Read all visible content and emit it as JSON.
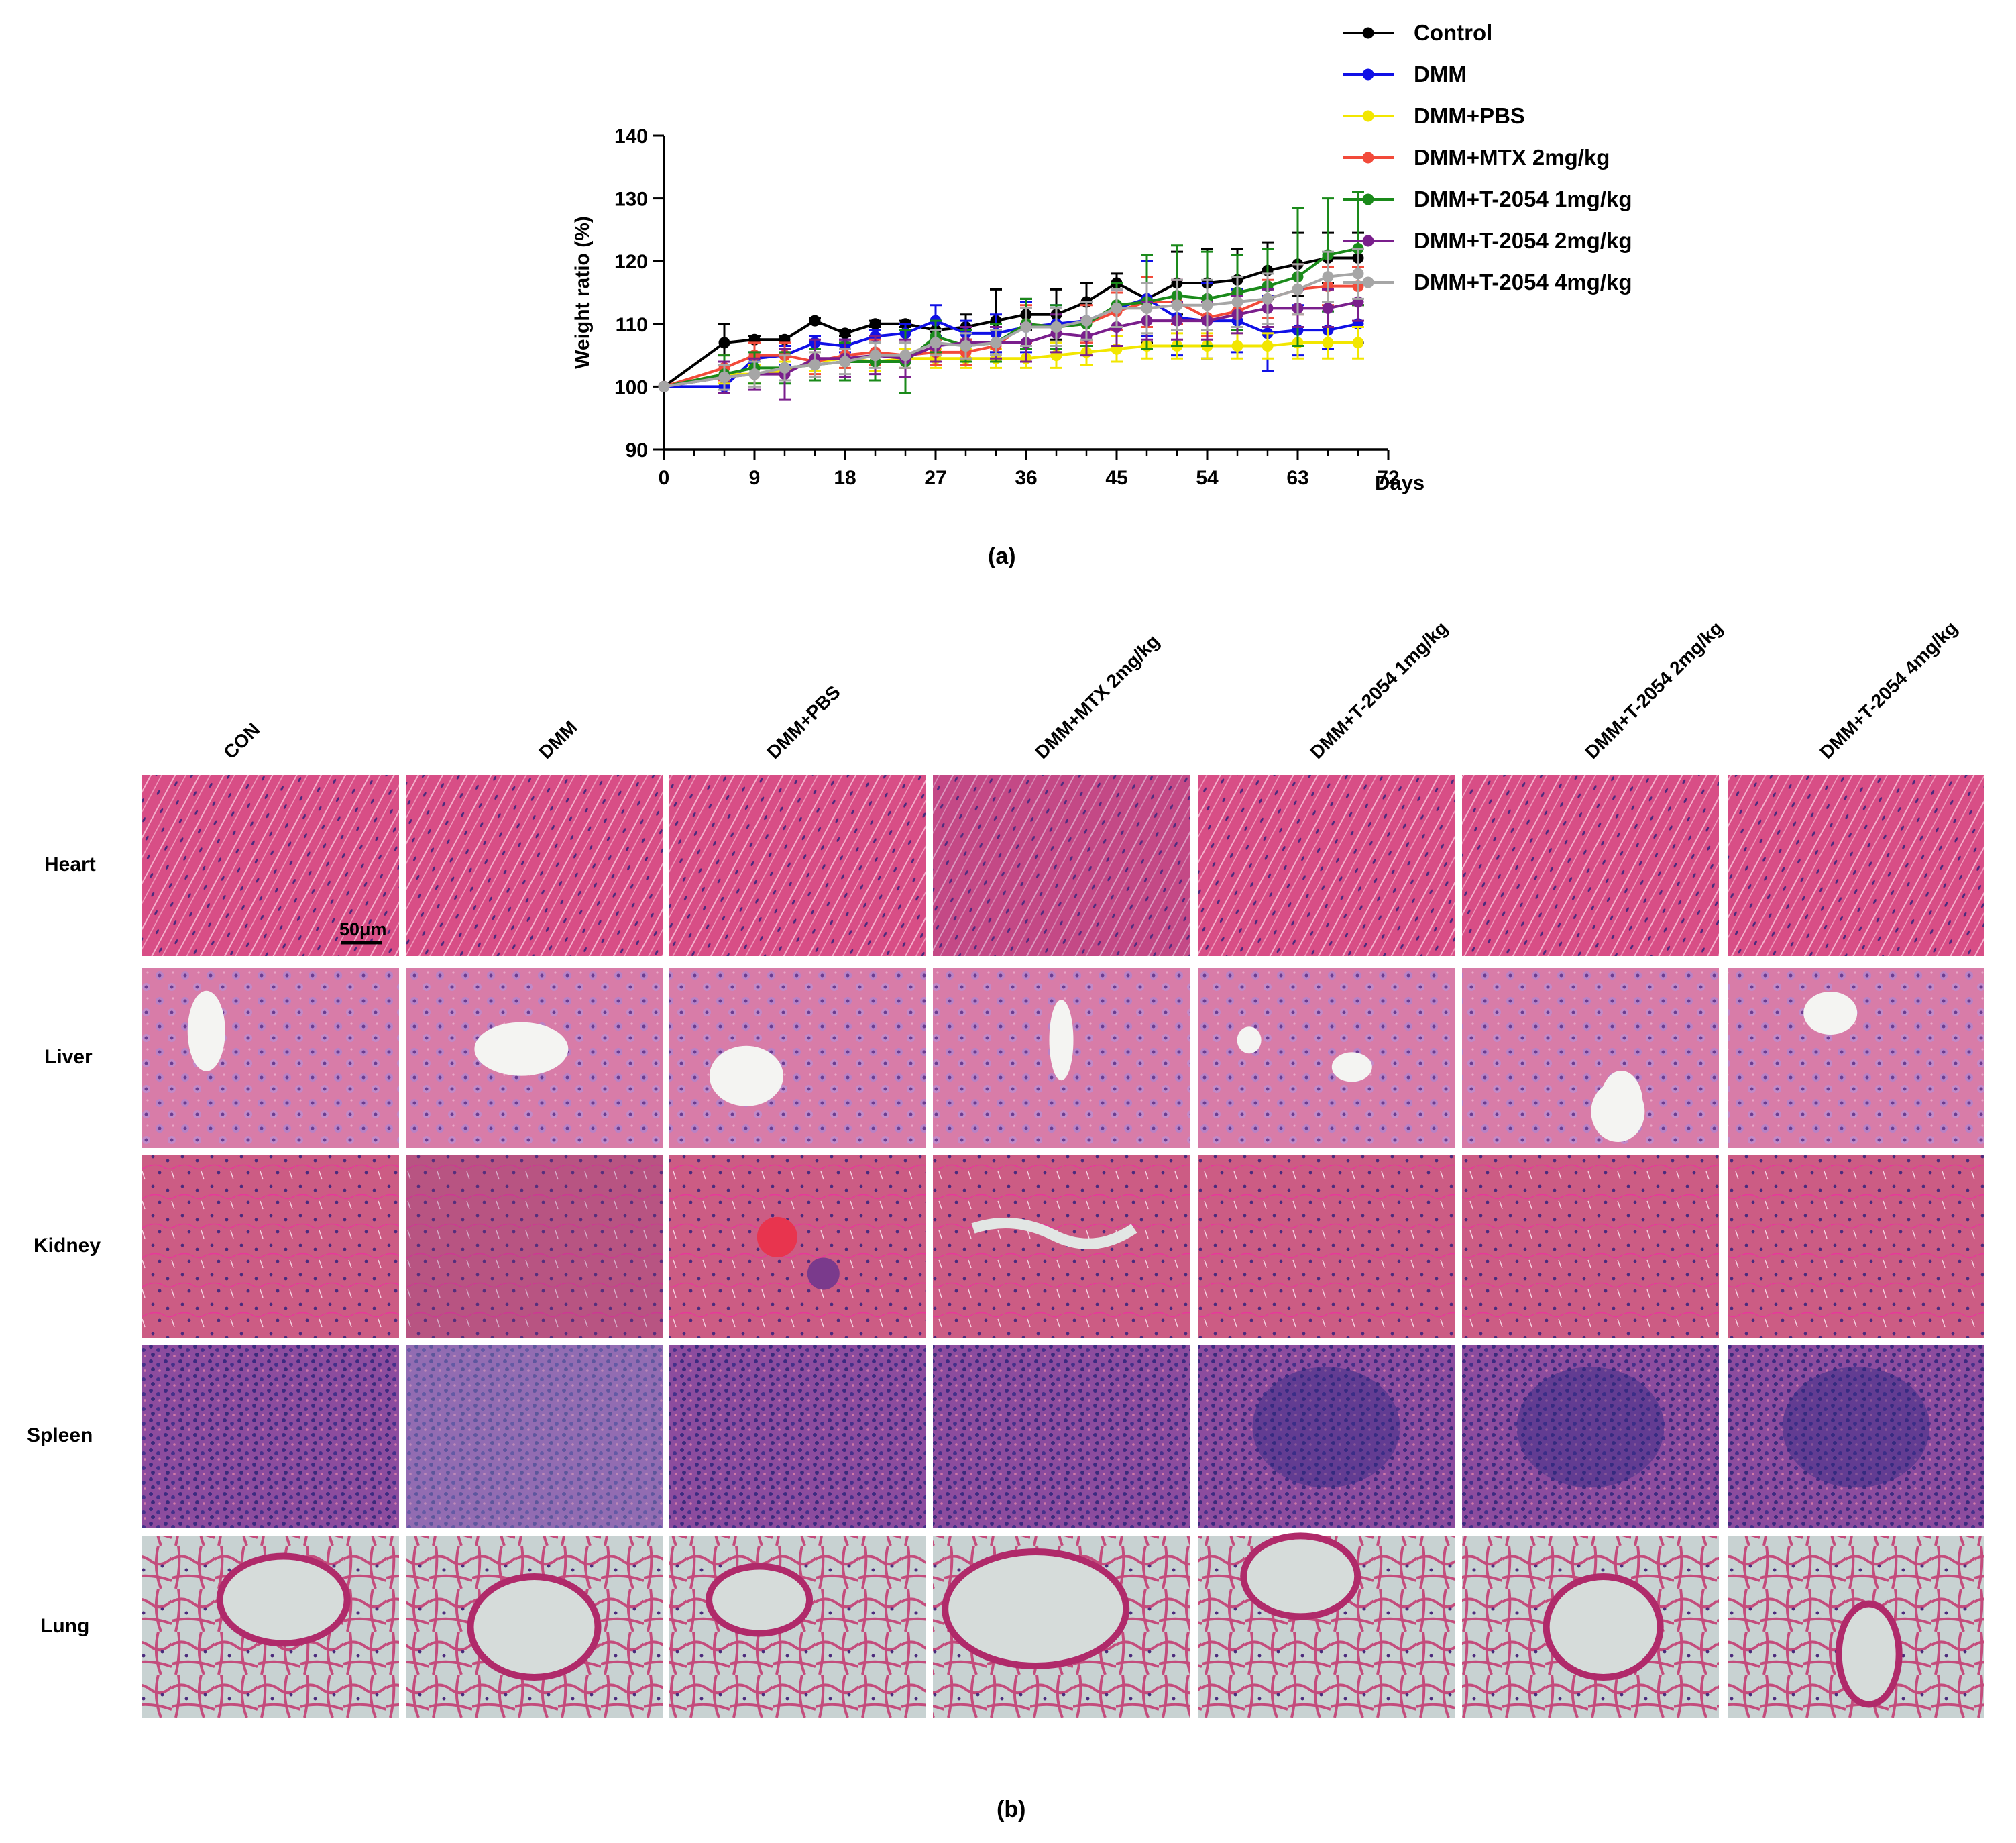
{
  "panel_a_label": "(a)",
  "panel_b_label": "(b)",
  "chart_data": {
    "type": "line",
    "ylabel": "Weight ratio (%)",
    "xlabel": "Days",
    "xlim": [
      0,
      72
    ],
    "ylim": [
      90,
      140
    ],
    "xticks": [
      0,
      9,
      18,
      27,
      36,
      45,
      54,
      63,
      72
    ],
    "yticks": [
      90,
      100,
      110,
      120,
      130,
      140
    ],
    "grid": false,
    "legend_position": "top-right",
    "x": [
      0,
      6,
      9,
      12,
      15,
      18,
      21,
      24,
      27,
      30,
      33,
      36,
      39,
      42,
      45,
      48,
      51,
      54,
      57,
      60,
      63,
      66,
      69
    ],
    "series": [
      {
        "name": "Control",
        "color": "#000000",
        "values": [
          100,
          107,
          107.5,
          107.5,
          110.5,
          108.5,
          110,
          110,
          109,
          109.5,
          110.5,
          111.5,
          111.5,
          113.5,
          116.5,
          114,
          116.5,
          116.5,
          117,
          118.5,
          119.5,
          120.5,
          120.5
        ],
        "errors": [
          0,
          3,
          0.5,
          0.5,
          0.5,
          0.5,
          0.5,
          0.5,
          1.5,
          2,
          5,
          2.5,
          4,
          3,
          1.5,
          7,
          5,
          5.5,
          5,
          4.5,
          5,
          4,
          4
        ]
      },
      {
        "name": "DMM",
        "color": "#1010e6",
        "values": [
          100,
          100,
          104.5,
          105,
          107,
          106.5,
          108,
          108.5,
          110.5,
          108.5,
          108.5,
          109.5,
          110,
          110.5,
          112.5,
          114,
          111,
          110.5,
          110.5,
          108.5,
          109,
          109,
          110
        ],
        "errors": [
          0,
          1,
          1,
          1.5,
          1,
          1,
          1,
          1.5,
          2.5,
          2,
          3,
          4,
          3,
          3,
          3,
          6,
          6,
          6,
          5,
          6,
          4,
          3,
          3
        ]
      },
      {
        "name": "DMM+PBS",
        "color": "#f2e600",
        "values": [
          100,
          102,
          102,
          102.5,
          104,
          104.5,
          104,
          104.5,
          104.5,
          104.5,
          104.5,
          104.5,
          105,
          105.5,
          106,
          106.5,
          106.5,
          106.5,
          106.5,
          106.5,
          107,
          107,
          107
        ],
        "errors": [
          0,
          1.5,
          1.5,
          1.5,
          1.5,
          1.5,
          1.5,
          1.5,
          1.5,
          1.5,
          1.5,
          1.5,
          2,
          2,
          2,
          2,
          2,
          2,
          2,
          2,
          2.5,
          2.5,
          2.5
        ]
      },
      {
        "name": "DMM+MTX 2mg/kg",
        "color": "#f24a3a",
        "values": [
          100,
          103,
          105,
          105,
          104,
          105,
          105.5,
          105,
          105.5,
          105.5,
          106.5,
          110,
          109.5,
          110,
          112,
          113.5,
          113.5,
          111,
          112,
          114,
          115.5,
          116,
          116
        ],
        "errors": [
          0,
          2,
          2,
          2,
          2,
          2,
          2,
          2,
          2,
          2,
          2.5,
          3,
          3,
          3,
          3,
          4,
          3.5,
          3,
          3,
          3,
          4,
          3,
          3
        ]
      },
      {
        "name": "DMM+T-2054 1mg/kg",
        "color": "#1a8a1a",
        "values": [
          100,
          102,
          103,
          103,
          103.5,
          104,
          104,
          104,
          108,
          106.5,
          107,
          110,
          109.5,
          110,
          113,
          113.5,
          114.5,
          114,
          115,
          116,
          117.5,
          121,
          122
        ],
        "errors": [
          0,
          3,
          2.5,
          2.5,
          2.5,
          3,
          3,
          5,
          2.5,
          2.5,
          3,
          4,
          3.5,
          3.5,
          3.5,
          7.5,
          8,
          7.5,
          6,
          6,
          11,
          9,
          9
        ]
      },
      {
        "name": "DMM+T-2054 2mg/kg",
        "color": "#7a1e8c",
        "values": [
          100,
          101.5,
          102,
          102,
          104.5,
          104.5,
          105,
          104.5,
          106.5,
          107,
          107,
          107,
          108.5,
          108,
          109.5,
          110.5,
          110.5,
          110.5,
          111.5,
          112.5,
          112.5,
          112.5,
          113.5
        ],
        "errors": [
          0,
          2.5,
          2.5,
          4,
          3,
          3,
          3,
          3,
          2.5,
          2.5,
          2.5,
          3,
          3,
          3,
          3,
          3,
          3,
          3,
          3,
          3,
          3,
          3,
          3
        ]
      },
      {
        "name": "DMM+T-2054 4mg/kg",
        "color": "#a6a6a6",
        "values": [
          100,
          101.5,
          102,
          103,
          103.5,
          104,
          105,
          105,
          107,
          106.5,
          107,
          109.5,
          109.5,
          110.5,
          112.5,
          112.5,
          113,
          113,
          113.5,
          114,
          115.5,
          117.5,
          118
        ],
        "errors": [
          0,
          2,
          2,
          2,
          2,
          2,
          2,
          2,
          2,
          2,
          2,
          3,
          3,
          3,
          3,
          4,
          4,
          4,
          4,
          4,
          4,
          4,
          4
        ]
      }
    ]
  },
  "histology": {
    "columns": [
      "CON",
      "DMM",
      "DMM+PBS",
      "DMM+MTX 2mg/kg",
      "DMM+T-2054 1mg/kg",
      "DMM+T-2054 2mg/kg",
      "DMM+T-2054 4mg/kg"
    ],
    "rows": [
      "Heart",
      "Liver",
      "Kidney",
      "Spleen",
      "Lung"
    ],
    "scale_bar": "50μm",
    "colors": {
      "Heart": "#d44c82",
      "Liver": "#d57aa6",
      "Kidney": "#c8587e",
      "Spleen": "#8a4aa0",
      "Lung": "#c4cfcf"
    }
  }
}
